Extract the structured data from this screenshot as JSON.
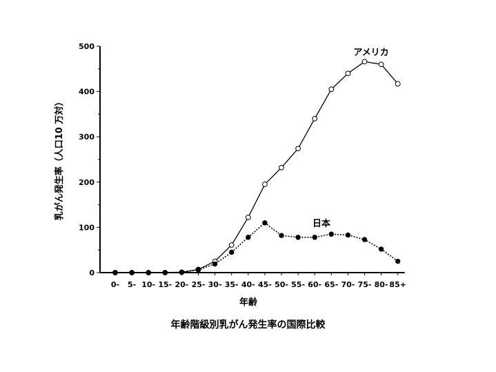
{
  "caption": "年齢階級別乳がん発生率の国際比較",
  "chart_data": {
    "type": "line",
    "xlabel": "年齢",
    "ylabel": "乳がん発生率（人口10 万対）",
    "ylim": [
      0,
      500
    ],
    "yticks": [
      0,
      100,
      200,
      300,
      400,
      500
    ],
    "categories": [
      "0-",
      "5-",
      "10-",
      "15-",
      "20-",
      "25-",
      "30-",
      "35-",
      "40-",
      "45-",
      "50-",
      "55-",
      "60-",
      "65-",
      "70-",
      "75-",
      "80-",
      "85+"
    ],
    "series": [
      {
        "name": "アメリカ",
        "marker": "open-circle",
        "line": "solid",
        "color": "#000000",
        "values": [
          0,
          0,
          0,
          0,
          1,
          7,
          25,
          61,
          122,
          195,
          232,
          274,
          340,
          405,
          440,
          466,
          460,
          417
        ]
      },
      {
        "name": "日本",
        "marker": "filled-circle",
        "line": "dotted",
        "color": "#000000",
        "values": [
          0,
          0,
          0,
          0,
          1,
          6,
          19,
          45,
          78,
          110,
          82,
          78,
          78,
          85,
          83,
          73,
          52,
          25
        ]
      }
    ]
  }
}
